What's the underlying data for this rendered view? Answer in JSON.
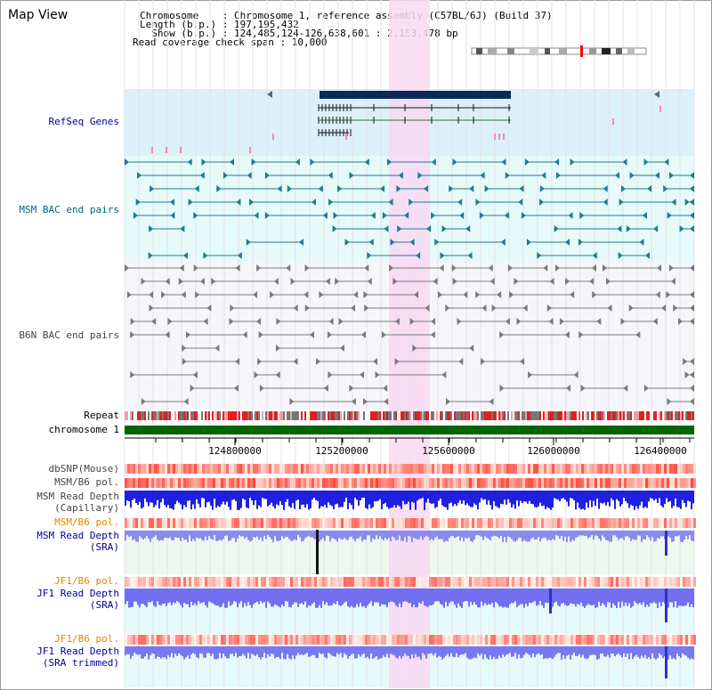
{
  "header": {
    "title": "Map View",
    "line1": "Chromosome    : Chromosome 1, reference assembly (C57BL/6J) (Build 37)",
    "line2": "Length (b.p.) : 197,195,432",
    "line3": "  Show (b.p.) : 124,485,124-126,638,601 : 2,153,478 bp",
    "line4": "Read coverage check span : 10,000"
  },
  "tracks": {
    "refseq": "RefSeq Genes",
    "msm_bac": "MSM BAC end pairs",
    "b6n_bac": "B6N BAC end pairs",
    "repeat": "Repeat",
    "chromosome": "chromosome 1",
    "dbsnp": "dbSNP(Mouse)",
    "msm_pol1": "MSM/B6 pol.",
    "msm_depth_cap": "MSM Read Depth\n(Capillary)",
    "msm_pol2": "MSM/B6 pol.",
    "msm_depth_sra": "MSM Read Depth\n(SRA)",
    "jf1_pol1": "JF1/B6 pol.",
    "jf1_depth_sra": "JF1 Read Depth\n(SRA)",
    "jf1_pol2": "JF1/B6 pol.",
    "jf1_depth_trim": "JF1 Read Depth\n(SRA trimmed)"
  },
  "ruler": {
    "ticks": [
      "124800000",
      "125200000",
      "125600000",
      "126000000",
      "126400000"
    ]
  },
  "colors": {
    "refseq_bg": "#dcf0fa",
    "msm_bg": "#e6fafa",
    "b6n_bg": "#f6f6fa",
    "highlight": "#f8d8f2",
    "chromosome_bar": "#006600",
    "msm_label": "#006688",
    "depth_label": "#000099",
    "pol_label": "#e08800"
  }
}
